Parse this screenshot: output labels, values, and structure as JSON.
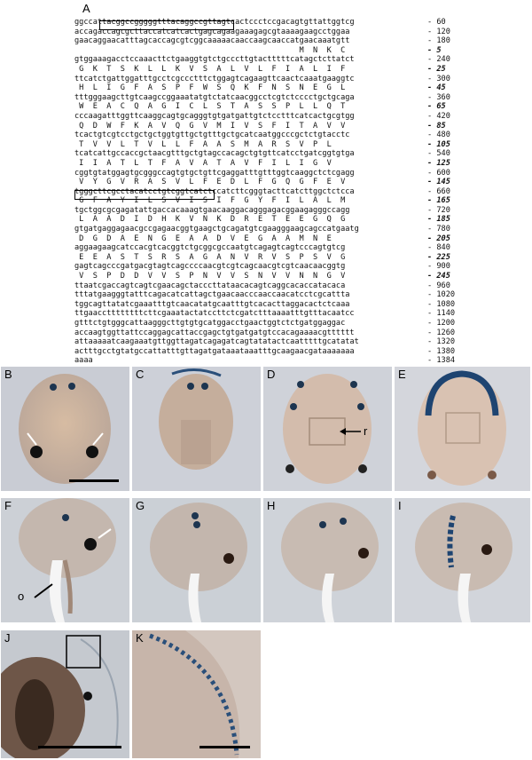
{
  "figure": {
    "labels": {
      "a": "A",
      "b": "B",
      "c": "C",
      "d": "D",
      "e": "E",
      "f": "F",
      "g": "G",
      "h": "H",
      "i": "I",
      "j": "J",
      "k": "K"
    },
    "annotations": {
      "r": "r",
      "o": "o"
    },
    "sequence": [
      {
        "type": "nt",
        "text": "ggccattacggccgggggtttacaggccgttagtcactccctccgacagtgttattggtcg",
        "num": "60"
      },
      {
        "type": "nt",
        "text": "accagaccagcgcttaccatcatcactgagcagaagaaagagcgtaaaagaagcctggaa",
        "num": "120"
      },
      {
        "type": "nt",
        "text": "gaacaggaacatttagcaccagcgtcggcaaaaacaaccaagcaaccatgaacaaatgtt",
        "num": "180"
      },
      {
        "type": "aa",
        "text": "                                                 M  N  K  C",
        "num": "5"
      },
      {
        "type": "nt",
        "text": "gtggaaagacctccaaacttctgaaggtgtctgcccttgtactttttcatagctcttatct",
        "num": "240"
      },
      {
        "type": "aa",
        "text": " G  K  T  S  K  L  L  K  V  S  A  L  V  L  F  I  A  L  I  F",
        "num": "25"
      },
      {
        "type": "nt",
        "text": "ttcatctgattggatttgcctcgccctttctggagtcagaagttcaactcaaatgaaggtc",
        "num": "300"
      },
      {
        "type": "aa",
        "text": " H  L  I  G  F  A  S  P  F  W  S  Q  K  F  N  S  N  E  G  L",
        "num": "45"
      },
      {
        "type": "nt",
        "text": "tttgggaagcttgtcaagccggaaatatgtctatcaacggcctcgtctcccctgctgcaga",
        "num": "360"
      },
      {
        "type": "aa",
        "text": " W  E  A  C  Q  A  G  I  C  L  S  T  A  S  S  P  L  L  Q  T",
        "num": "65"
      },
      {
        "type": "nt",
        "text": "cccaagatttggttcaaggcagtgcagggtgtgatgattgtctcctttcatcactgcgtgg",
        "num": "420"
      },
      {
        "type": "aa",
        "text": " Q  D  W  F  K  A  V  Q  G  V  M  I  V  S  F  I  T  A  V  V",
        "num": "85"
      },
      {
        "type": "nt",
        "text": "tcactgtcgtcctgctgctggtgttgctgtttgctgcatcaatggcccgctctgtacctc",
        "num": "480"
      },
      {
        "type": "aa",
        "text": " T  V  V  L  T  V  L  L  F  A  A  S  M  A  R  S  V  P  L",
        "num": "105"
      },
      {
        "type": "nt",
        "text": "tcatcattgccaccgctaacgtttgctgtagccacagctgtgttcatcctgatcggtgtga",
        "num": "540"
      },
      {
        "type": "aa",
        "text": " I  I  A  T  L  T  F  A  V  A  T  A  V  F  I  L  I  G  V",
        "num": "125"
      },
      {
        "type": "nt",
        "text": "cggtgtatggagtgcgggccagtgtgctgttcgaggatttgtttggtcaaggctctcgagg",
        "num": "600"
      },
      {
        "type": "aa",
        "text": " V  Y  G  V  R  A  S  V  L  F  E  D  L  F  G  Q  G  F  E  V",
        "num": "145"
      },
      {
        "type": "nt",
        "text": "tgggcttcgcctacatcctgtcggtcatctccatcttcgggtacttcatcttggctctcca",
        "num": "660"
      },
      {
        "type": "aa",
        "text": " G  F  A  Y  I  L  S  V  I  S  I  F  G  Y  F  I  L  A  L  M",
        "num": "165"
      },
      {
        "type": "nt",
        "text": "tgctggcgcgagatattgaccacaaagtgaacaaggacagggagacggaagagggccagg",
        "num": "720"
      },
      {
        "type": "aa",
        "text": " L  A  A  D  I  D  H  K  V  N  K  D  R  E  T  E  E  G  Q  G",
        "num": "185"
      },
      {
        "type": "nt",
        "text": "gtgatgaggagaacgccgagaacggtgaagctgcagatgtcgaagggaagcagccatgaatg",
        "num": "780"
      },
      {
        "type": "aa",
        "text": " D  G  D  A  E  N  G  E  A  A  D  V  E  G  A  A  M  N  E",
        "num": "205"
      },
      {
        "type": "nt",
        "text": "aggaagaagcatccacgtcacggtctgcggcgccaatgtcagagtcagtcccagtgtcg",
        "num": "840"
      },
      {
        "type": "aa",
        "text": " E  E  A  S  T  S  R  S  A  G  A  N  V  R  V  S  P  S  V  G",
        "num": "225"
      },
      {
        "type": "nt",
        "text": "gagtcagcccgatgacgtagtcagccccaacgtcgtcagcaacgtcgtcaacaacggtg",
        "num": "900"
      },
      {
        "type": "aa",
        "text": " V  S  P  D  D  V  V  S  P  N  V  V  S  N  V  V  N  N  G  V",
        "num": "245"
      },
      {
        "type": "nt",
        "text": "ttaatcgaccagtcagtcgaacagctacccttataacacagtcaggcacaccatacaca",
        "num": "960"
      },
      {
        "type": "nt",
        "text": "tttatgaagggtatttcagacatcattagctgaacaacccaaccaacatcctcgcattta",
        "num": "1020"
      },
      {
        "type": "nt",
        "text": "tggcagttatatcgaaatttgtcaacatatgcaatttgtcacacttaggacactctcaaa",
        "num": "1080"
      },
      {
        "type": "nt",
        "text": "ttgaaccttttttttcttcgaaatactatccttctcgatctttaaaatttgtttacaatcc",
        "num": "1140"
      },
      {
        "type": "nt",
        "text": "gtttctgtgggcattaagggcttgtgtgcatggacctgaactggtctctgatggaggac",
        "num": "1200"
      },
      {
        "type": "nt",
        "text": "accaagtggttattccaggagcattaccgagctgtgatgatgtccacagaaaacgtttttt",
        "num": "1260"
      },
      {
        "type": "nt",
        "text": "attaaaaatcaagaaatgttggttagatcagagatcagtatatactcaatttttgcatatat",
        "num": "1320"
      },
      {
        "type": "nt",
        "text": "actttgcctgtatgccattatttgttagatgataaataaatttgcaagaacgataaaaaaa",
        "num": "1380"
      },
      {
        "type": "nt",
        "text": "aaaa",
        "num": "1384"
      }
    ],
    "num_prefix": "- "
  }
}
